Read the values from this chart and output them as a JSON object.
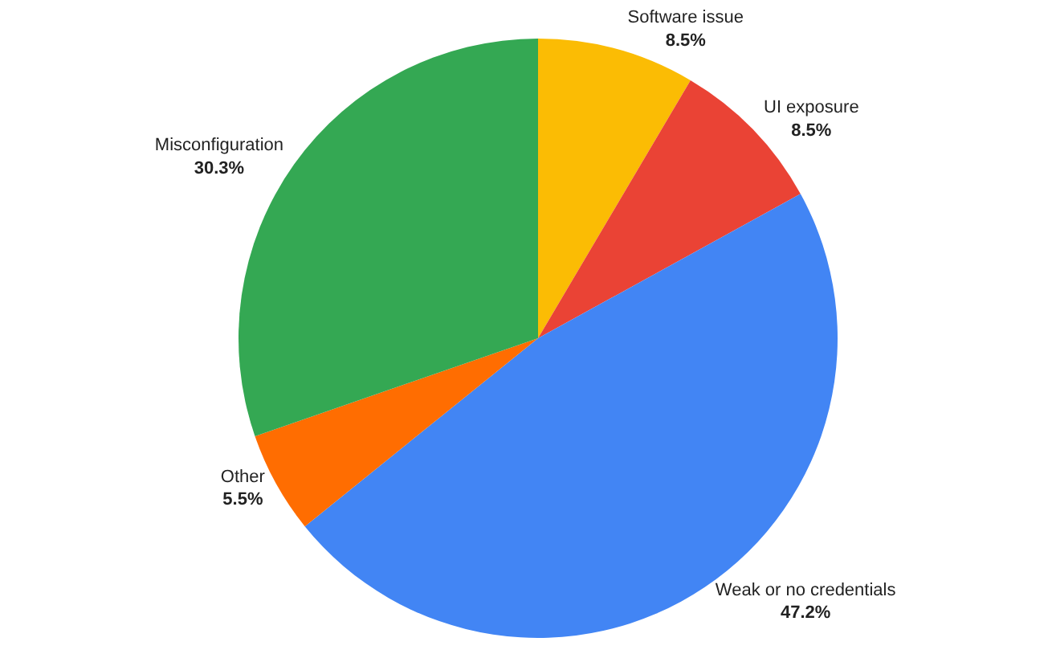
{
  "chart_data": {
    "type": "pie",
    "categories": [
      "Software issue",
      "UI exposure",
      "Weak or no credentials",
      "Other",
      "Misconfiguration"
    ],
    "values": [
      8.5,
      8.5,
      47.2,
      5.5,
      30.3
    ],
    "value_labels": [
      "8.5%",
      "8.5%",
      "47.2%",
      "5.5%",
      "30.3%"
    ],
    "colors": [
      "#fbbc04",
      "#ea4335",
      "#4285f4",
      "#ff6d01",
      "#34a853"
    ],
    "legend": false
  }
}
